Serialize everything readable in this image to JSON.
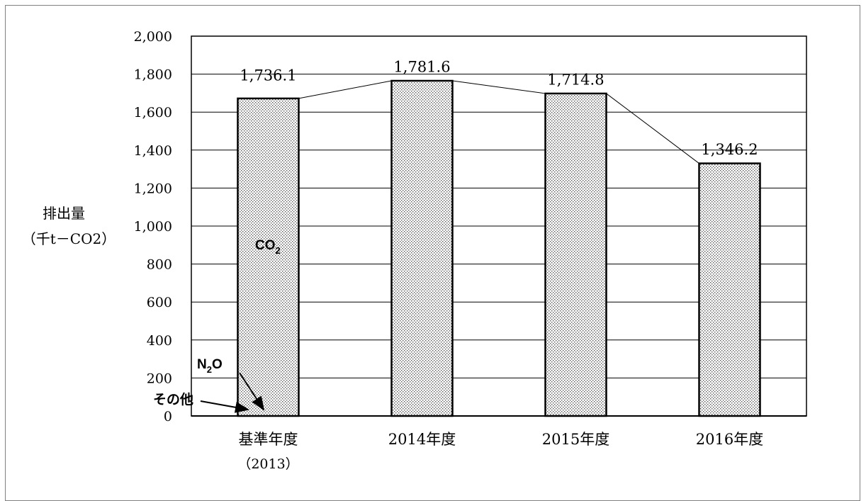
{
  "chart_data": {
    "type": "bar",
    "ylabel": "排出量",
    "ylabel_unit": "（千t－CO2）",
    "ylim": [
      0,
      2000
    ],
    "yticks": [
      "0",
      "200",
      "400",
      "600",
      "800",
      "1,000",
      "1,200",
      "1,400",
      "1,600",
      "1,800",
      "2,000"
    ],
    "ytick_values": [
      0,
      200,
      400,
      600,
      800,
      1000,
      1200,
      1400,
      1600,
      1800,
      2000
    ],
    "grid": true,
    "categories": [
      "基準年度",
      "2014年度",
      "2015年度",
      "2016年度"
    ],
    "category_sublabels": [
      "（2013）",
      "",
      "",
      ""
    ],
    "series": [
      {
        "name": "CO2",
        "values": [
          1672,
          1765,
          1698,
          1330
        ]
      },
      {
        "name": "N2O",
        "values": [
          62,
          15,
          15,
          15
        ]
      },
      {
        "name": "その他",
        "values": [
          2,
          1.6,
          1.8,
          1.2
        ]
      }
    ],
    "totals": [
      1736.1,
      1781.6,
      1714.8,
      1346.2
    ],
    "total_labels": [
      "1,736.1",
      "1,781.6",
      "1,714.8",
      "1,346.2"
    ],
    "annotations": {
      "co2_main": "CO",
      "co2_sub": "2",
      "n2o_main": "N",
      "n2o_sub": "2",
      "n2o_end": "O",
      "other": "その他"
    }
  }
}
